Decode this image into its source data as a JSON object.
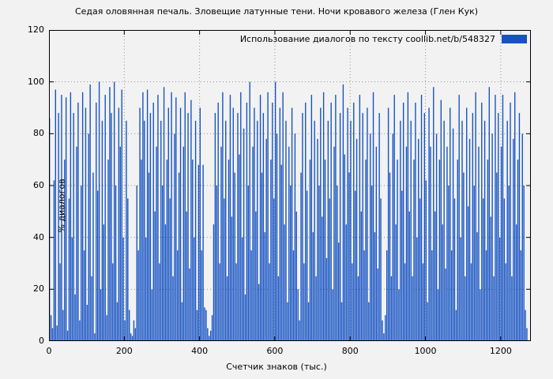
{
  "title": "Седая оловянная печаль. Зловещие латунные тени. Ночи кровавого железа (Глен Кук)",
  "legend": {
    "label": "Использование диалогов по тексту  coollib.net/b/548327"
  },
  "axes": {
    "x_label": "Счетчик знаков (тыс.)",
    "y_label": "% диалогов"
  },
  "colors": {
    "bar": "#1552c2",
    "background": "#f2f2f2",
    "grid": "#909090",
    "border": "#000000"
  },
  "chart_data": {
    "type": "bar",
    "title": "Седая оловянная печаль. Зловещие латунные тени. Ночи кровавого железа (Глен Кук)",
    "xlabel": "Счетчик знаков (тыс.)",
    "ylabel": "% диалогов",
    "legend_label": "Использование диалогов по тексту  coollib.net/b/548327",
    "xlim": [
      0,
      1280
    ],
    "ylim": [
      0,
      120
    ],
    "x_ticks": [
      0,
      200,
      400,
      600,
      800,
      1000,
      1200
    ],
    "y_ticks": [
      0,
      20,
      40,
      60,
      80,
      100,
      120
    ],
    "grid": true,
    "legend_position": "top-right",
    "x_step_thousand_chars": 4,
    "values": [
      86,
      10,
      5,
      62,
      97,
      6,
      88,
      30,
      95,
      12,
      70,
      94,
      4,
      55,
      96,
      40,
      88,
      18,
      75,
      92,
      8,
      60,
      96,
      35,
      90,
      14,
      80,
      99,
      25,
      65,
      3,
      92,
      58,
      100,
      20,
      85,
      45,
      95,
      10,
      70,
      98,
      88,
      30,
      100,
      60,
      15,
      90,
      75,
      97,
      40,
      8,
      85,
      55,
      12,
      3,
      2,
      8,
      5,
      60,
      35,
      90,
      70,
      96,
      85,
      40,
      97,
      65,
      88,
      20,
      92,
      50,
      75,
      95,
      30,
      85,
      60,
      98,
      45,
      70,
      90,
      55,
      96,
      25,
      80,
      94,
      35,
      65,
      90,
      15,
      75,
      96,
      50,
      88,
      28,
      93,
      70,
      40,
      85,
      12,
      68,
      90,
      35,
      68,
      13,
      12,
      5,
      2,
      4,
      10,
      45,
      88,
      60,
      92,
      30,
      75,
      96,
      55,
      85,
      25,
      70,
      95,
      48,
      90,
      65,
      30,
      88,
      72,
      96,
      40,
      82,
      18,
      92,
      60,
      100,
      35,
      75,
      90,
      50,
      85,
      22,
      95,
      65,
      88,
      42,
      78,
      96,
      30,
      70,
      92,
      55,
      100,
      80,
      25,
      90,
      68,
      96,
      45,
      85,
      15,
      75,
      60,
      90,
      35,
      80,
      50,
      20,
      8,
      65,
      88,
      30,
      92,
      58,
      15,
      70,
      95,
      42,
      85,
      25,
      78,
      60,
      90,
      48,
      96,
      70,
      32,
      85,
      55,
      92,
      20,
      75,
      95,
      60,
      38,
      88,
      15,
      99,
      72,
      45,
      90,
      65,
      85,
      30,
      92,
      58,
      78,
      25,
      95,
      50,
      88,
      35,
      70,
      90,
      15,
      80,
      60,
      96,
      42,
      75,
      28,
      88,
      55,
      8,
      3,
      10,
      35,
      90,
      65,
      25,
      80,
      95,
      45,
      70,
      20,
      85,
      58,
      92,
      30,
      75,
      96,
      50,
      85,
      25,
      70,
      92,
      40,
      78,
      55,
      95,
      30,
      88,
      62,
      15,
      90,
      75,
      35,
      98,
      50,
      80,
      20,
      70,
      93,
      45,
      85,
      28,
      75,
      60,
      90,
      35,
      82,
      55,
      12,
      70,
      95,
      40,
      85,
      65,
      25,
      90,
      52,
      78,
      30,
      88,
      60,
      96,
      42,
      75,
      20,
      92,
      55,
      85,
      35,
      70,
      98,
      48,
      80,
      25,
      95,
      65,
      88,
      40,
      75,
      95,
      55,
      30,
      85,
      60,
      92,
      25,
      78,
      96,
      45,
      70,
      88,
      35,
      80,
      60,
      12,
      5
    ]
  }
}
